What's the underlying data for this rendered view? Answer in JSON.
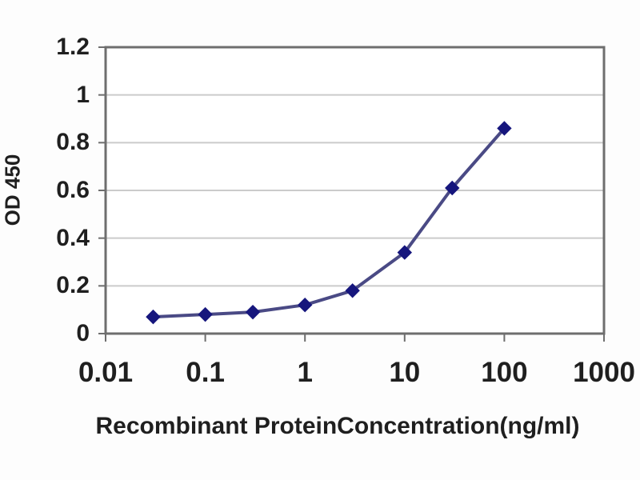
{
  "chart_data": {
    "type": "line",
    "title": "",
    "xlabel": "Recombinant ProteinConcentration(ng/ml)",
    "ylabel": "OD 450",
    "x_scale": "log",
    "xlim": [
      0.01,
      1000
    ],
    "ylim": [
      0,
      1.2
    ],
    "x_ticks": [
      0.01,
      0.1,
      1,
      10,
      100,
      1000
    ],
    "x_tick_labels": [
      "0.01",
      "0.1",
      "1",
      "10",
      "100",
      "1000"
    ],
    "y_ticks": [
      0,
      0.2,
      0.4,
      0.6,
      0.8,
      1,
      1.2
    ],
    "y_tick_labels": [
      "0",
      "0.2",
      "0.4",
      "0.6",
      "0.8",
      "1",
      "1.2"
    ],
    "grid": "horizontal",
    "legend": "none",
    "series": [
      {
        "name": "OD450",
        "marker": "diamond",
        "x": [
          0.03,
          0.1,
          0.3,
          1,
          3,
          10,
          30,
          100
        ],
        "y": [
          0.07,
          0.08,
          0.09,
          0.12,
          0.18,
          0.34,
          0.61,
          0.86
        ]
      }
    ],
    "colors": {
      "line": "#4a4a85",
      "marker": "#16167d",
      "gridline": "#cbcbcb",
      "axis_border": "#6e6e6e",
      "tick_mark": "#6e6e6e",
      "plot_background": "#ffffff",
      "text": "#1f1f1f"
    }
  }
}
